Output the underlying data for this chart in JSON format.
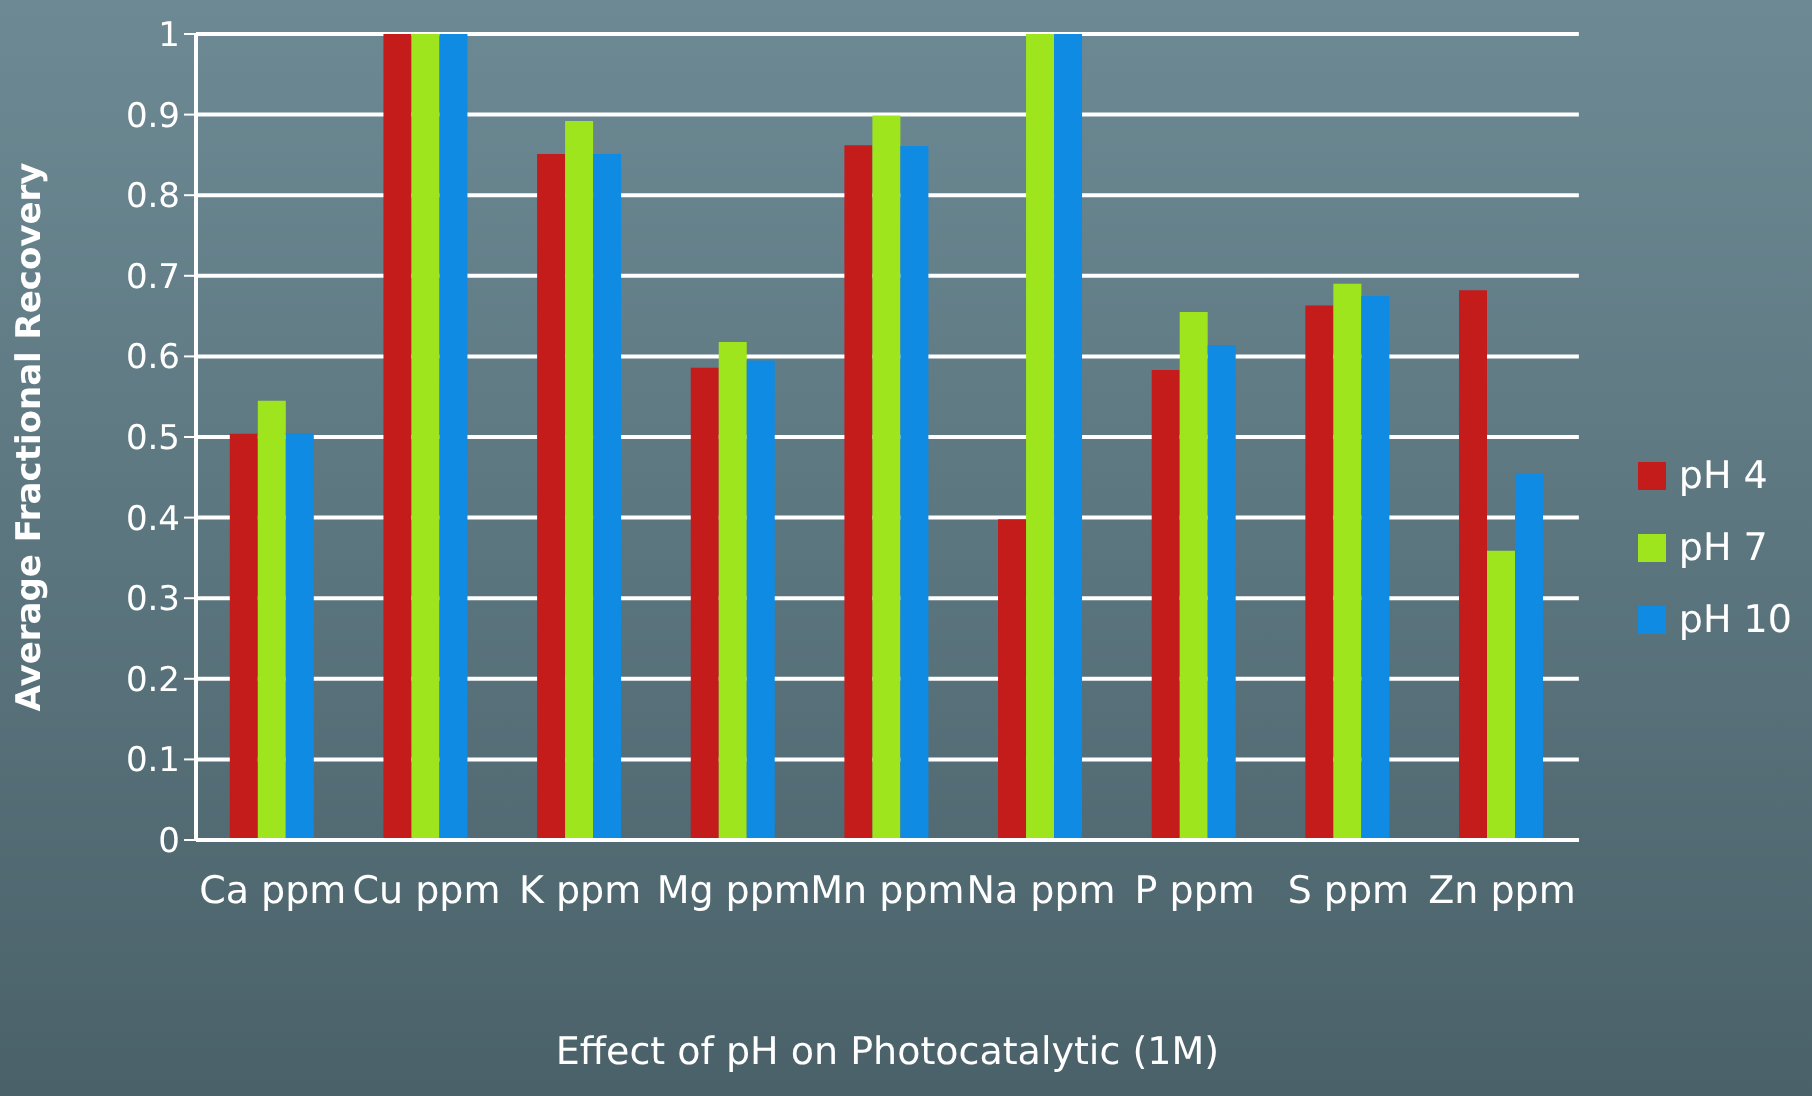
{
  "chart_data": {
    "type": "bar",
    "xlabel": "Effect of pH on Photocatalytic (1M)",
    "ylabel": "Average Fractional Recovery",
    "categories": [
      "Ca ppm",
      "Cu ppm",
      "K ppm",
      "Mg ppm",
      "Mn ppm",
      "Na ppm",
      "P ppm",
      "S ppm",
      "Zn ppm"
    ],
    "series": [
      {
        "name": "pH 4",
        "color": "#c41b1b",
        "values": [
          0.504,
          1,
          0.851,
          0.586,
          0.862,
          0.398,
          0.583,
          0.663,
          0.682
        ]
      },
      {
        "name": "pH 7",
        "color": "#9ee51e",
        "values": [
          0.545,
          1,
          0.892,
          0.618,
          0.899,
          1,
          0.655,
          0.69,
          0.359
        ]
      },
      {
        "name": "pH 10",
        "color": "#0f8be4",
        "values": [
          0.505,
          1,
          0.851,
          0.595,
          0.861,
          1,
          0.614,
          0.675,
          0.455
        ]
      }
    ],
    "ylim": [
      0,
      1
    ],
    "yticks": [
      0,
      0.1,
      0.2,
      0.3,
      0.4,
      0.5,
      0.6,
      0.7,
      0.8,
      0.9,
      1
    ],
    "grid": "y",
    "legend": "right"
  }
}
